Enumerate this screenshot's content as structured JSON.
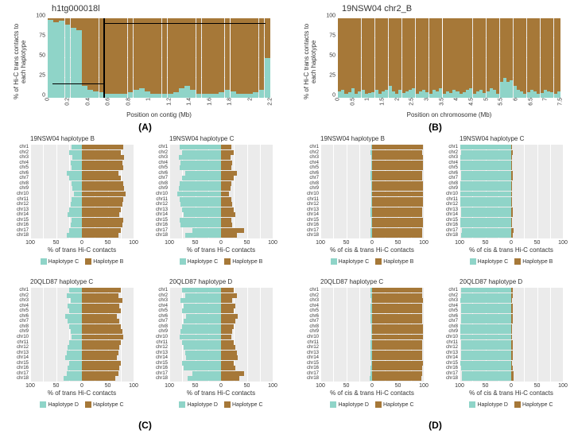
{
  "colors": {
    "teal": "#8fd4c8",
    "brown": "#a67838",
    "brown_dark": "#8a6230",
    "bg": "#ebebeb",
    "grid": "#ffffff",
    "text": "#333333",
    "black": "#000000"
  },
  "panelA": {
    "title": "h1tg000018l",
    "ylabel": "% of Hi-C trans contacts\nto each haplotype",
    "xlabel": "Position on contig (Mb)",
    "label": "(A)",
    "yticks": [
      0,
      25,
      50,
      75,
      100
    ],
    "xticks": [
      0,
      0.2,
      0.4,
      0.6,
      0.8,
      1,
      1.2,
      1.4,
      1.6,
      1.8,
      2,
      2.2
    ],
    "bars": [
      [
        2,
        98
      ],
      [
        5,
        95
      ],
      [
        3,
        97
      ],
      [
        8,
        92
      ],
      [
        12,
        88
      ],
      [
        15,
        85
      ],
      [
        85,
        15
      ],
      [
        90,
        10
      ],
      [
        92,
        8
      ],
      [
        93,
        7
      ],
      [
        95,
        5
      ],
      [
        95,
        5
      ],
      [
        95,
        5
      ],
      [
        95,
        5
      ],
      [
        93,
        7
      ],
      [
        90,
        10
      ],
      [
        88,
        12
      ],
      [
        92,
        8
      ],
      [
        95,
        5
      ],
      [
        95,
        5
      ],
      [
        95,
        5
      ],
      [
        95,
        5
      ],
      [
        93,
        7
      ],
      [
        88,
        12
      ],
      [
        85,
        15
      ],
      [
        90,
        10
      ],
      [
        95,
        5
      ],
      [
        95,
        5
      ],
      [
        95,
        5
      ],
      [
        95,
        5
      ],
      [
        93,
        7
      ],
      [
        90,
        10
      ],
      [
        92,
        8
      ],
      [
        95,
        5
      ],
      [
        95,
        5
      ],
      [
        95,
        5
      ],
      [
        93,
        7
      ],
      [
        90,
        10
      ],
      [
        50,
        50
      ]
    ],
    "breakpoint_x": 0.55,
    "h_line1_y": 17,
    "h_line1_x0": 0.05,
    "h_line1_x1": 0.55,
    "h_line2_y": 93,
    "h_line2_x0": 0.55,
    "h_line2_x1": 2.15
  },
  "panelB": {
    "title": "19NSW04 chr2_B",
    "ylabel": "% of Hi-C trans contacts\nto each haplotype",
    "xlabel": "Position on chromosome (Mb)",
    "label": "(B)",
    "yticks": [
      0,
      25,
      50,
      75,
      100
    ],
    "xticks": [
      0,
      0.5,
      1,
      1.5,
      2,
      2.5,
      3,
      3.5,
      4,
      4.5,
      5,
      5.5,
      6,
      6.5,
      7,
      7.5
    ],
    "bars": [
      [
        92,
        8
      ],
      [
        90,
        10
      ],
      [
        95,
        5
      ],
      [
        93,
        7
      ],
      [
        88,
        12
      ],
      [
        95,
        5
      ],
      [
        92,
        8
      ],
      [
        90,
        10
      ],
      [
        95,
        5
      ],
      [
        94,
        6
      ],
      [
        93,
        7
      ],
      [
        90,
        10
      ],
      [
        95,
        5
      ],
      [
        92,
        8
      ],
      [
        90,
        10
      ],
      [
        85,
        15
      ],
      [
        92,
        8
      ],
      [
        95,
        5
      ],
      [
        90,
        10
      ],
      [
        94,
        6
      ],
      [
        92,
        8
      ],
      [
        90,
        10
      ],
      [
        88,
        12
      ],
      [
        95,
        5
      ],
      [
        92,
        8
      ],
      [
        90,
        10
      ],
      [
        93,
        7
      ],
      [
        95,
        5
      ],
      [
        90,
        10
      ],
      [
        92,
        8
      ],
      [
        88,
        12
      ],
      [
        95,
        5
      ],
      [
        92,
        8
      ],
      [
        94,
        6
      ],
      [
        90,
        10
      ],
      [
        92,
        8
      ],
      [
        95,
        5
      ],
      [
        93,
        7
      ],
      [
        90,
        10
      ],
      [
        88,
        12
      ],
      [
        95,
        5
      ],
      [
        92,
        8
      ],
      [
        90,
        10
      ],
      [
        94,
        6
      ],
      [
        92,
        8
      ],
      [
        88,
        12
      ],
      [
        90,
        10
      ],
      [
        95,
        5
      ],
      [
        80,
        20
      ],
      [
        75,
        25
      ],
      [
        80,
        20
      ],
      [
        78,
        22
      ],
      [
        85,
        15
      ],
      [
        90,
        10
      ],
      [
        92,
        8
      ],
      [
        95,
        5
      ],
      [
        93,
        7
      ],
      [
        90,
        10
      ],
      [
        92,
        8
      ],
      [
        95,
        5
      ],
      [
        94,
        6
      ],
      [
        90,
        10
      ],
      [
        92,
        8
      ],
      [
        93,
        7
      ],
      [
        95,
        5
      ],
      [
        92,
        8
      ]
    ]
  },
  "chr_labels": [
    "chr1",
    "chr2",
    "chr3",
    "chr4",
    "chr5",
    "chr6",
    "chr7",
    "chr8",
    "chr9",
    "chr10",
    "chr11",
    "chr12",
    "chr13",
    "chr14",
    "chr15",
    "chr16",
    "chr17",
    "chr18"
  ],
  "panelC": {
    "label": "(C)",
    "xlabel": "% of trans Hi-C contacts",
    "xticks_left": [
      100,
      50,
      0
    ],
    "xticks_right": [
      0,
      50,
      100
    ],
    "sub": [
      {
        "title": "19NSW04 haplotype B",
        "legend": [
          "Haplotype C",
          "Haplotype B"
        ],
        "data": [
          [
            20,
            80
          ],
          [
            25,
            75
          ],
          [
            18,
            82
          ],
          [
            22,
            78
          ],
          [
            20,
            80
          ],
          [
            30,
            70
          ],
          [
            25,
            75
          ],
          [
            20,
            80
          ],
          [
            18,
            82
          ],
          [
            15,
            85
          ],
          [
            20,
            80
          ],
          [
            22,
            78
          ],
          [
            25,
            75
          ],
          [
            28,
            72
          ],
          [
            20,
            80
          ],
          [
            22,
            78
          ],
          [
            25,
            75
          ],
          [
            30,
            70
          ]
        ]
      },
      {
        "title": "19NSW04 haplotype C",
        "legend": [
          "Haplotype C",
          "Haplotype B"
        ],
        "data": [
          [
            80,
            20
          ],
          [
            75,
            25
          ],
          [
            82,
            18
          ],
          [
            78,
            22
          ],
          [
            80,
            20
          ],
          [
            70,
            30
          ],
          [
            75,
            25
          ],
          [
            80,
            20
          ],
          [
            82,
            18
          ],
          [
            85,
            15
          ],
          [
            80,
            20
          ],
          [
            78,
            22
          ],
          [
            75,
            25
          ],
          [
            72,
            28
          ],
          [
            80,
            20
          ],
          [
            78,
            22
          ],
          [
            55,
            45
          ],
          [
            70,
            30
          ]
        ]
      },
      {
        "title": "20QLD87 haplotype C",
        "legend": [
          "Haplotype D",
          "Haplotype C"
        ],
        "data": [
          [
            25,
            75
          ],
          [
            30,
            70
          ],
          [
            22,
            78
          ],
          [
            28,
            72
          ],
          [
            25,
            75
          ],
          [
            32,
            68
          ],
          [
            28,
            72
          ],
          [
            25,
            75
          ],
          [
            22,
            78
          ],
          [
            20,
            80
          ],
          [
            25,
            75
          ],
          [
            28,
            72
          ],
          [
            30,
            70
          ],
          [
            32,
            68
          ],
          [
            25,
            75
          ],
          [
            28,
            72
          ],
          [
            30,
            70
          ],
          [
            35,
            65
          ]
        ]
      },
      {
        "title": "20QLD87 haplotype D",
        "legend": [
          "Haplotype D",
          "Haplotype C"
        ],
        "data": [
          [
            75,
            25
          ],
          [
            70,
            30
          ],
          [
            78,
            22
          ],
          [
            72,
            28
          ],
          [
            75,
            25
          ],
          [
            68,
            32
          ],
          [
            72,
            28
          ],
          [
            75,
            25
          ],
          [
            78,
            22
          ],
          [
            80,
            20
          ],
          [
            75,
            25
          ],
          [
            72,
            28
          ],
          [
            70,
            30
          ],
          [
            68,
            32
          ],
          [
            75,
            25
          ],
          [
            72,
            28
          ],
          [
            55,
            45
          ],
          [
            65,
            35
          ]
        ]
      }
    ]
  },
  "panelD": {
    "label": "(D)",
    "xlabel": "% of cis & trans Hi-C contacts",
    "xticks_left": [
      100,
      50,
      0
    ],
    "xticks_right": [
      0,
      50,
      100
    ],
    "sub": [
      {
        "title": "19NSW04 haplotype B",
        "legend": [
          "Haplotype C",
          "Haplotype B"
        ],
        "data": [
          [
            2,
            98
          ],
          [
            3,
            97
          ],
          [
            2,
            98
          ],
          [
            2,
            98
          ],
          [
            2,
            98
          ],
          [
            3,
            97
          ],
          [
            3,
            97
          ],
          [
            2,
            98
          ],
          [
            2,
            98
          ],
          [
            2,
            98
          ],
          [
            2,
            98
          ],
          [
            2,
            98
          ],
          [
            3,
            97
          ],
          [
            3,
            97
          ],
          [
            2,
            98
          ],
          [
            2,
            98
          ],
          [
            3,
            97
          ],
          [
            3,
            97
          ]
        ]
      },
      {
        "title": "19NSW04 haplotype C",
        "legend": [
          "Haplotype C",
          "Haplotype B"
        ],
        "data": [
          [
            98,
            2
          ],
          [
            97,
            3
          ],
          [
            98,
            2
          ],
          [
            98,
            2
          ],
          [
            98,
            2
          ],
          [
            97,
            3
          ],
          [
            97,
            3
          ],
          [
            98,
            2
          ],
          [
            98,
            2
          ],
          [
            98,
            2
          ],
          [
            98,
            2
          ],
          [
            98,
            2
          ],
          [
            97,
            3
          ],
          [
            97,
            3
          ],
          [
            98,
            2
          ],
          [
            98,
            2
          ],
          [
            96,
            4
          ],
          [
            97,
            3
          ]
        ]
      },
      {
        "title": "20QLD87 haplotype C",
        "legend": [
          "Haplotype D",
          "Haplotype C"
        ],
        "data": [
          [
            3,
            97
          ],
          [
            3,
            97
          ],
          [
            2,
            98
          ],
          [
            3,
            97
          ],
          [
            3,
            97
          ],
          [
            3,
            97
          ],
          [
            3,
            97
          ],
          [
            2,
            98
          ],
          [
            2,
            98
          ],
          [
            2,
            98
          ],
          [
            3,
            97
          ],
          [
            3,
            97
          ],
          [
            3,
            97
          ],
          [
            3,
            97
          ],
          [
            2,
            98
          ],
          [
            3,
            97
          ],
          [
            3,
            97
          ],
          [
            4,
            96
          ]
        ]
      },
      {
        "title": "20QLD87 haplotype D",
        "legend": [
          "Haplotype D",
          "Haplotype C"
        ],
        "data": [
          [
            97,
            3
          ],
          [
            97,
            3
          ],
          [
            98,
            2
          ],
          [
            97,
            3
          ],
          [
            97,
            3
          ],
          [
            97,
            3
          ],
          [
            97,
            3
          ],
          [
            98,
            2
          ],
          [
            98,
            2
          ],
          [
            98,
            2
          ],
          [
            97,
            3
          ],
          [
            97,
            3
          ],
          [
            97,
            3
          ],
          [
            97,
            3
          ],
          [
            98,
            2
          ],
          [
            97,
            3
          ],
          [
            95,
            5
          ],
          [
            96,
            4
          ]
        ]
      }
    ]
  }
}
